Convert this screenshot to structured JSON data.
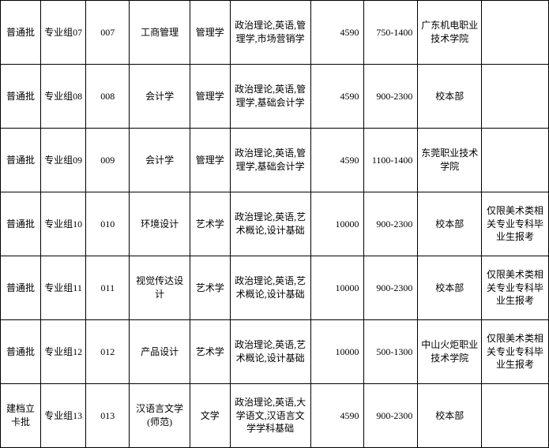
{
  "columns": [
    {
      "key": "c0",
      "class": "col0"
    },
    {
      "key": "c1",
      "class": "col1"
    },
    {
      "key": "c2",
      "class": "col2"
    },
    {
      "key": "c3",
      "class": "col3"
    },
    {
      "key": "c4",
      "class": "col4"
    },
    {
      "key": "c5",
      "class": "col5"
    },
    {
      "key": "c6",
      "class": "col6"
    },
    {
      "key": "c7",
      "class": "col7"
    },
    {
      "key": "c8",
      "class": "col8"
    },
    {
      "key": "c9",
      "class": "col9"
    }
  ],
  "rows": [
    {
      "c0": "普通批",
      "c1": "专业组07",
      "c2": "007",
      "c3": "工商管理",
      "c4": "管理学",
      "c5": "政治理论,英语,管理学,市场营销学",
      "c6": "4590",
      "c7": "750-1400",
      "c8": "广东机电职业技术学院",
      "c9": ""
    },
    {
      "c0": "普通批",
      "c1": "专业组08",
      "c2": "008",
      "c3": "会计学",
      "c4": "管理学",
      "c5": "政治理论,英语,管理学,基础会计学",
      "c6": "4590",
      "c7": "900-2300",
      "c8": "校本部",
      "c9": ""
    },
    {
      "c0": "普通批",
      "c1": "专业组09",
      "c2": "009",
      "c3": "会计学",
      "c4": "管理学",
      "c5": "政治理论,英语,管理学,基础会计学",
      "c6": "4590",
      "c7": "1100-1400",
      "c8": "东莞职业技术学院",
      "c9": ""
    },
    {
      "c0": "普通批",
      "c1": "专业组10",
      "c2": "010",
      "c3": "环境设计",
      "c4": "艺术学",
      "c5": "政治理论,英语,艺术概论,设计基础",
      "c6": "10000",
      "c7": "900-2300",
      "c8": "校本部",
      "c9": "仅限美术类相关专业专科毕业生报考"
    },
    {
      "c0": "普通批",
      "c1": "专业组11",
      "c2": "011",
      "c3": "视觉传达设计",
      "c4": "艺术学",
      "c5": "政治理论,英语,艺术概论,设计基础",
      "c6": "10000",
      "c7": "900-2300",
      "c8": "校本部",
      "c9": "仅限美术类相关专业专科毕业生报考"
    },
    {
      "c0": "普通批",
      "c1": "专业组12",
      "c2": "012",
      "c3": "产品设计",
      "c4": "艺术学",
      "c5": "政治理论,英语,艺术概论,设计基础",
      "c6": "10000",
      "c7": "500-1300",
      "c8": "中山火炬职业技术学院",
      "c9": "仅限美术类相关专业专科毕业生报考"
    },
    {
      "c0": "建档立卡批",
      "c1": "专业组13",
      "c2": "013",
      "c3": "汉语言文学(师范)",
      "c4": "文学",
      "c5": "政治理论,英语,大学语文,汉语言文学学科基础",
      "c6": "4590",
      "c7": "900-2300",
      "c8": "校本部",
      "c9": ""
    }
  ]
}
